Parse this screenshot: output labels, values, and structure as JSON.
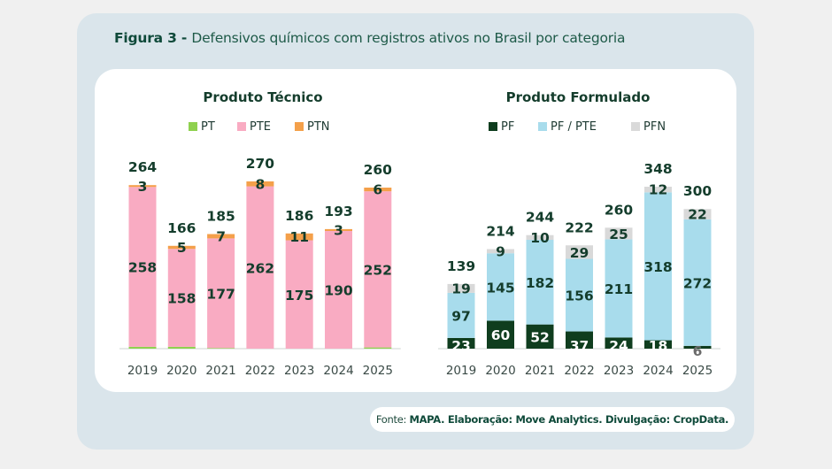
{
  "figure": {
    "label": "Figura 3",
    "separator": " - ",
    "title": "Defensivos químicos com registros ativos no Brasil por categoria"
  },
  "source": {
    "prefix": "Fonte: ",
    "text": "MAPA. Elaboração: Move Analytics. Divulgação: CropData."
  },
  "colors": {
    "label_dark": "#143d2c",
    "axis_text": "#3a4a46",
    "pt": "#8fd14f",
    "pte": "#f9abc2",
    "ptn": "#f4a04a",
    "pf": "#0f3d1e",
    "pf_pte": "#a8dcec",
    "pfn": "#d9d9d9"
  },
  "chart_data": [
    {
      "type": "bar",
      "stacked": true,
      "title": "Produto Técnico",
      "categories": [
        "2019",
        "2020",
        "2021",
        "2022",
        "2023",
        "2024",
        "2025"
      ],
      "series": [
        {
          "name": "PT",
          "color_key": "pt",
          "values": [
            3,
            3,
            1,
            0,
            0,
            0,
            2
          ],
          "show_labels": false
        },
        {
          "name": "PTE",
          "color_key": "pte",
          "values": [
            258,
            158,
            177,
            262,
            175,
            190,
            252
          ],
          "show_labels": true
        },
        {
          "name": "PTN",
          "color_key": "ptn",
          "values": [
            3,
            5,
            7,
            8,
            11,
            3,
            6
          ],
          "show_labels": true
        }
      ],
      "totals": [
        264,
        166,
        185,
        270,
        186,
        193,
        260
      ],
      "legend": [
        "PT",
        "PTE",
        "PTN"
      ],
      "legend_position": "top-center",
      "ylim": [
        0,
        270
      ],
      "grid": false
    },
    {
      "type": "bar",
      "stacked": true,
      "title": "Produto Formulado",
      "categories": [
        "2019",
        "2020",
        "2021",
        "2022",
        "2023",
        "2024",
        "2025"
      ],
      "series": [
        {
          "name": "PF",
          "color_key": "pf",
          "values": [
            23,
            60,
            52,
            37,
            24,
            18,
            6
          ],
          "show_labels": true
        },
        {
          "name": "PF / PTE",
          "color_key": "pf_pte",
          "values": [
            97,
            145,
            182,
            156,
            211,
            318,
            272
          ],
          "show_labels": true
        },
        {
          "name": "PFN",
          "color_key": "pfn",
          "values": [
            19,
            9,
            10,
            29,
            25,
            12,
            22
          ],
          "show_labels": true
        }
      ],
      "totals": [
        139,
        214,
        244,
        222,
        260,
        348,
        300
      ],
      "legend": [
        "PF",
        "PF / PTE",
        "PFN"
      ],
      "legend_position": "top-center",
      "ylim": [
        0,
        348
      ],
      "grid": false
    }
  ]
}
